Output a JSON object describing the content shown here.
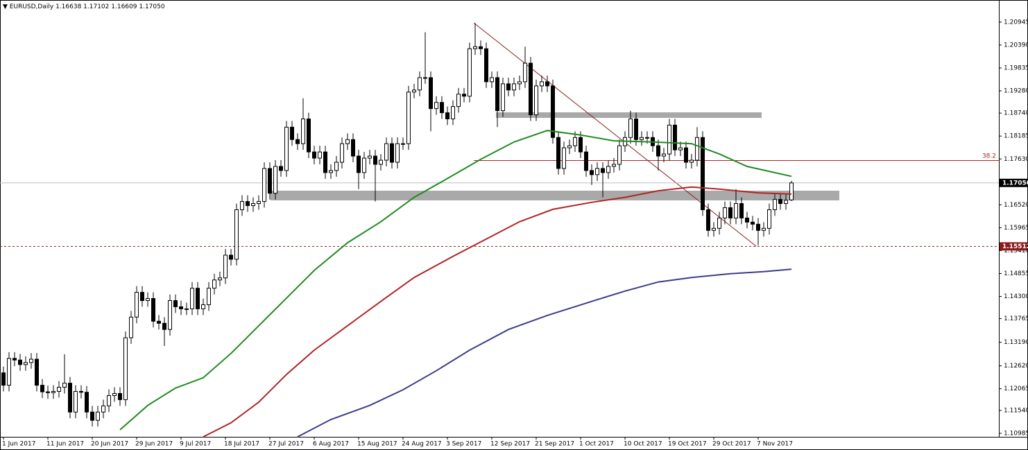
{
  "chart_data": {
    "type": "candlestick",
    "symbol": "EURUSD,Daily",
    "xlim": [
      -0.625,
      179.375
    ],
    "ylim": [
      1.109,
      1.2148
    ],
    "xticks": [
      {
        "value": 0,
        "label": "1 Jun 2017"
      },
      {
        "value": 8,
        "label": "11 Jun 2017"
      },
      {
        "value": 16,
        "label": "20 Jun 2017"
      },
      {
        "value": 24,
        "label": "29 Jun 2017"
      },
      {
        "value": 32,
        "label": "9 Jul 2017"
      },
      {
        "value": 40,
        "label": "18 Jul 2017"
      },
      {
        "value": 48,
        "label": "27 Jul 2017"
      },
      {
        "value": 56,
        "label": "6 Aug 2017"
      },
      {
        "value": 64,
        "label": "15 Aug 2017"
      },
      {
        "value": 72,
        "label": "24 Aug 2017"
      },
      {
        "value": 80,
        "label": "3 Sep 2017"
      },
      {
        "value": 88,
        "label": "12 Sep 2017"
      },
      {
        "value": 96,
        "label": "21 Sep 2017"
      },
      {
        "value": 104,
        "label": "1 Oct 2017"
      },
      {
        "value": 112,
        "label": "10 Oct 2017"
      },
      {
        "value": 120,
        "label": "19 Oct 2017"
      },
      {
        "value": 128,
        "label": "29 Oct 2017"
      },
      {
        "value": 136,
        "label": "7 Nov 2017"
      }
    ],
    "yticks": [
      1.20945,
      {
        "value": 1.2039,
        "label": "1.20390"
      },
      1.19835,
      {
        "value": 1.1928,
        "label": "1.19280"
      },
      {
        "value": 1.1874,
        "label": "1.18740"
      },
      1.18185,
      {
        "value": 1.1763,
        "label": "1.17630"
      },
      {
        "value": 1.1652,
        "label": "1.16520"
      },
      1.15965,
      {
        "value": 1.1541,
        "label": "1.15410"
      },
      1.14855,
      {
        "value": 1.143,
        "label": "1.14300"
      },
      1.13765,
      {
        "value": 1.1319,
        "label": "1.13190"
      },
      {
        "value": 1.1262,
        "label": "1.12620"
      },
      1.12065,
      {
        "value": 1.1154,
        "label": "1.11540"
      },
      1.10985
    ],
    "current_price": {
      "value": 1.1705,
      "label": "1.17050"
    },
    "support_line": 1.15512,
    "fib_level": 38.2,
    "up_color": "#ffffff",
    "down_color": "#000000",
    "open": [
      1.1245,
      1.1215,
      1.128,
      1.1276,
      1.1265,
      1.127,
      1.1278,
      1.1215,
      1.1199,
      1.1197,
      1.12,
      1.121,
      1.122,
      1.115,
      1.12,
      1.1198,
      1.115,
      1.113,
      1.115,
      1.1165,
      1.119,
      1.1195,
      1.118,
      1.133,
      1.138,
      1.144,
      1.142,
      1.1425,
      1.137,
      1.1365,
      1.135,
      1.142,
      1.1405,
      1.14,
      1.14,
      1.145,
      1.14,
      1.141,
      1.145,
      1.147,
      1.1475,
      1.153,
      1.152,
      1.164,
      1.166,
      1.165,
      1.1655,
      1.166,
      1.174,
      1.168,
      1.1745,
      1.1735,
      1.184,
      1.181,
      1.18,
      1.186,
      1.178,
      1.1765,
      1.178,
      1.173,
      1.1735,
      1.1755,
      1.18,
      1.181,
      1.177,
      1.173,
      1.1765,
      1.177,
      1.175,
      1.176,
      1.18,
      1.1755,
      1.18,
      1.18,
      1.1925,
      1.193,
      1.196,
      1.196,
      1.1885,
      1.19,
      1.1875,
      1.186,
      1.189,
      1.192,
      1.1915,
      1.203,
      1.2035,
      1.203,
      1.195,
      1.196,
      1.188,
      1.1945,
      1.193,
      1.1945,
      1.195,
      1.1995,
      1.187,
      1.194,
      1.195,
      1.194,
      1.1815,
      1.174,
      1.179,
      1.1795,
      1.1815,
      1.178,
      1.1735,
      1.1725,
      1.174,
      1.173,
      1.1745,
      1.175,
      1.1795,
      1.1815,
      1.186,
      1.181,
      1.1815,
      1.1815,
      1.1795,
      1.177,
      1.1775,
      1.1845,
      1.1785,
      1.179,
      1.1755,
      1.176,
      1.1815,
      1.164,
      1.159,
      1.1595,
      1.162,
      1.1645,
      1.162,
      1.1655,
      1.162,
      1.161,
      1.1605,
      1.159,
      1.1595,
      1.164,
      1.1665,
      1.1655,
      1.16638
    ],
    "high": [
      1.126,
      1.1295,
      1.1295,
      1.1291,
      1.1285,
      1.1293,
      1.1293,
      1.123,
      1.1214,
      1.1215,
      1.1225,
      1.129,
      1.1235,
      1.1215,
      1.1215,
      1.1213,
      1.1165,
      1.1165,
      1.118,
      1.1205,
      1.121,
      1.121,
      1.1345,
      1.1395,
      1.1455,
      1.1455,
      1.144,
      1.144,
      1.1385,
      1.138,
      1.1435,
      1.1435,
      1.142,
      1.1415,
      1.1465,
      1.1465,
      1.1425,
      1.1465,
      1.1485,
      1.149,
      1.1545,
      1.1545,
      1.1655,
      1.1675,
      1.1675,
      1.167,
      1.1675,
      1.1755,
      1.1755,
      1.176,
      1.176,
      1.1855,
      1.1855,
      1.1825,
      1.191,
      1.1875,
      1.1795,
      1.1795,
      1.1795,
      1.175,
      1.177,
      1.1815,
      1.1825,
      1.1825,
      1.1785,
      1.178,
      1.1785,
      1.1785,
      1.1775,
      1.1815,
      1.1815,
      1.1815,
      1.1815,
      1.194,
      1.1945,
      1.1975,
      1.207,
      1.1975,
      1.1915,
      1.1915,
      1.189,
      1.1905,
      1.1935,
      1.1935,
      1.2045,
      1.2092,
      1.205,
      1.2045,
      1.1975,
      1.1975,
      1.196,
      1.196,
      1.196,
      1.1965,
      1.2035,
      1.201,
      1.1955,
      1.1965,
      1.1965,
      1.1955,
      1.183,
      1.1805,
      1.181,
      1.183,
      1.183,
      1.1795,
      1.175,
      1.1755,
      1.1755,
      1.176,
      1.1765,
      1.181,
      1.183,
      1.188,
      1.1875,
      1.183,
      1.183,
      1.183,
      1.181,
      1.179,
      1.186,
      1.186,
      1.1805,
      1.1805,
      1.1775,
      1.184,
      1.183,
      1.1655,
      1.161,
      1.1635,
      1.166,
      1.166,
      1.169,
      1.167,
      1.1635,
      1.1625,
      1.162,
      1.161,
      1.1655,
      1.168,
      1.168,
      1.1678,
      1.17102
    ],
    "low": [
      1.12,
      1.12,
      1.1261,
      1.125,
      1.125,
      1.1255,
      1.12,
      1.1184,
      1.1182,
      1.1182,
      1.1185,
      1.1195,
      1.1135,
      1.1135,
      1.1183,
      1.1135,
      1.1115,
      1.1115,
      1.1135,
      1.115,
      1.1175,
      1.1165,
      1.1165,
      1.1315,
      1.1365,
      1.1405,
      1.1405,
      1.1355,
      1.135,
      1.131,
      1.1335,
      1.139,
      1.1385,
      1.1385,
      1.1385,
      1.1385,
      1.1385,
      1.1395,
      1.1435,
      1.1455,
      1.146,
      1.1505,
      1.1505,
      1.1625,
      1.1635,
      1.1635,
      1.164,
      1.1645,
      1.1665,
      1.1665,
      1.172,
      1.172,
      1.1795,
      1.1785,
      1.1785,
      1.1765,
      1.175,
      1.175,
      1.1715,
      1.1715,
      1.172,
      1.174,
      1.1785,
      1.1755,
      1.169,
      1.1715,
      1.175,
      1.166,
      1.1735,
      1.1745,
      1.174,
      1.174,
      1.1785,
      1.1785,
      1.191,
      1.1915,
      1.1945,
      1.183,
      1.187,
      1.186,
      1.1845,
      1.1845,
      1.1875,
      1.19,
      1.19,
      1.2015,
      1.2015,
      1.1935,
      1.1935,
      1.184,
      1.1865,
      1.1915,
      1.1915,
      1.193,
      1.1935,
      1.1855,
      1.1855,
      1.1925,
      1.1925,
      1.18,
      1.1725,
      1.1725,
      1.1775,
      1.178,
      1.1765,
      1.172,
      1.17,
      1.171,
      1.167,
      1.1715,
      1.173,
      1.1735,
      1.178,
      1.18,
      1.1795,
      1.1795,
      1.18,
      1.178,
      1.1735,
      1.1755,
      1.176,
      1.177,
      1.177,
      1.174,
      1.174,
      1.1745,
      1.1625,
      1.1575,
      1.1575,
      1.158,
      1.1605,
      1.1605,
      1.1605,
      1.1605,
      1.1595,
      1.159,
      1.1554,
      1.1575,
      1.158,
      1.1625,
      1.164,
      1.164,
      1.16609
    ],
    "close": [
      1.1215,
      1.128,
      1.1276,
      1.1265,
      1.127,
      1.1278,
      1.1215,
      1.1199,
      1.1197,
      1.12,
      1.121,
      1.122,
      1.115,
      1.12,
      1.1198,
      1.115,
      1.113,
      1.115,
      1.1165,
      1.119,
      1.1195,
      1.118,
      1.133,
      1.138,
      1.144,
      1.142,
      1.1425,
      1.137,
      1.1365,
      1.135,
      1.142,
      1.1405,
      1.14,
      1.14,
      1.145,
      1.14,
      1.141,
      1.145,
      1.147,
      1.1475,
      1.153,
      1.152,
      1.164,
      1.166,
      1.165,
      1.1655,
      1.166,
      1.174,
      1.168,
      1.1745,
      1.1735,
      1.184,
      1.181,
      1.18,
      1.186,
      1.178,
      1.1765,
      1.178,
      1.173,
      1.1735,
      1.1755,
      1.18,
      1.181,
      1.177,
      1.173,
      1.1765,
      1.177,
      1.175,
      1.176,
      1.18,
      1.1755,
      1.18,
      1.18,
      1.1925,
      1.193,
      1.196,
      1.196,
      1.1885,
      1.19,
      1.1875,
      1.186,
      1.189,
      1.192,
      1.1915,
      1.203,
      1.2035,
      1.203,
      1.195,
      1.196,
      1.188,
      1.1945,
      1.193,
      1.1945,
      1.195,
      1.1995,
      1.187,
      1.194,
      1.195,
      1.194,
      1.1815,
      1.174,
      1.179,
      1.1795,
      1.1815,
      1.178,
      1.1735,
      1.1725,
      1.174,
      1.173,
      1.1745,
      1.175,
      1.1795,
      1.1815,
      1.186,
      1.181,
      1.1815,
      1.1815,
      1.1795,
      1.177,
      1.1775,
      1.1845,
      1.1785,
      1.179,
      1.1755,
      1.176,
      1.1815,
      1.164,
      1.159,
      1.1595,
      1.162,
      1.1645,
      1.162,
      1.1655,
      1.162,
      1.161,
      1.1605,
      1.159,
      1.1595,
      1.164,
      1.1665,
      1.1655,
      1.1663,
      1.1705
    ],
    "moving_averages": [
      {
        "color": "#1f8a1f",
        "x": [
          21,
          26,
          31,
          36,
          41,
          46,
          51,
          56,
          62,
          68,
          74,
          79,
          86,
          92,
          98,
          104,
          110,
          117,
          124,
          129,
          134,
          142
        ],
        "values": [
          1.1107,
          1.1166,
          1.1208,
          1.1233,
          1.1292,
          1.1359,
          1.1426,
          1.1493,
          1.156,
          1.1611,
          1.167,
          1.1708,
          1.1762,
          1.1804,
          1.1832,
          1.1821,
          1.1807,
          1.1804,
          1.18,
          1.1775,
          1.1745,
          1.1721
        ]
      },
      {
        "color": "#b22222",
        "x": [
          36,
          41,
          46,
          51,
          56,
          62,
          68,
          74,
          81,
          87,
          93,
          99,
          106,
          112,
          118,
          124,
          129,
          136,
          142
        ],
        "values": [
          1.109,
          1.1124,
          1.1174,
          1.1241,
          1.13,
          1.1359,
          1.1418,
          1.1476,
          1.1527,
          1.1569,
          1.1611,
          1.1641,
          1.1658,
          1.167,
          1.1686,
          1.1695,
          1.169,
          1.1681,
          1.1678
        ]
      },
      {
        "color": "#3b3b8c",
        "x": [
          53,
          59,
          66,
          72,
          78,
          84,
          91,
          98,
          106,
          112,
          118,
          124,
          131,
          137,
          142
        ],
        "values": [
          1.109,
          1.1132,
          1.1166,
          1.1204,
          1.125,
          1.13,
          1.135,
          1.1384,
          1.1418,
          1.1443,
          1.1465,
          1.1476,
          1.1485,
          1.149,
          1.1496
        ]
      }
    ]
  }
}
